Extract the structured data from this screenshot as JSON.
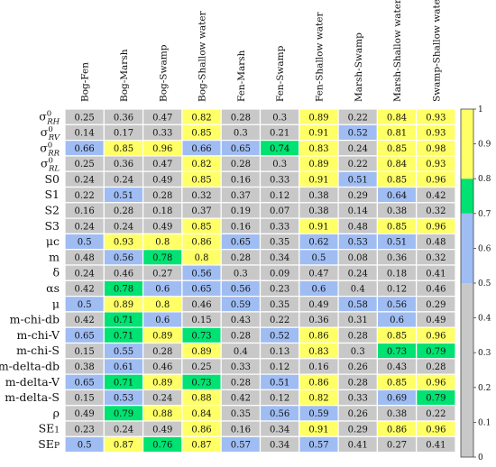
{
  "chart_data": {
    "type": "heatmap",
    "columns": [
      "Bog-Fen",
      "Bog-Marsh",
      "Bog-Swamp",
      "Bog-Shallow water",
      "Fen-Marsh",
      "Fen-Swamp",
      "Fen-Shallow water",
      "Marsh-Swamp",
      "Marsh-Shallow water",
      "Swamp-Shallow water"
    ],
    "rows": [
      {
        "label": "σ⁰RH",
        "base": "σ",
        "sup": "0",
        "sub": "RH",
        "values": [
          0.25,
          0.36,
          0.47,
          0.82,
          0.28,
          0.3,
          0.89,
          0.22,
          0.84,
          0.93
        ]
      },
      {
        "label": "σ⁰RV",
        "base": "σ",
        "sup": "0",
        "sub": "RV",
        "values": [
          0.14,
          0.17,
          0.33,
          0.85,
          0.3,
          0.21,
          0.91,
          0.52,
          0.81,
          0.93
        ]
      },
      {
        "label": "σ⁰RR",
        "base": "σ",
        "sup": "0",
        "sub": "RR",
        "values": [
          0.66,
          0.85,
          0.96,
          0.66,
          0.65,
          0.74,
          0.83,
          0.24,
          0.85,
          0.98
        ]
      },
      {
        "label": "σ⁰RL",
        "base": "σ",
        "sup": "0",
        "sub": "RL",
        "values": [
          0.25,
          0.36,
          0.47,
          0.82,
          0.28,
          0.3,
          0.89,
          0.22,
          0.84,
          0.93
        ]
      },
      {
        "label": "S0",
        "values": [
          0.24,
          0.24,
          0.49,
          0.85,
          0.16,
          0.33,
          0.91,
          0.51,
          0.85,
          0.96
        ]
      },
      {
        "label": "S1",
        "values": [
          0.22,
          0.51,
          0.28,
          0.32,
          0.37,
          0.12,
          0.38,
          0.29,
          0.64,
          0.42
        ]
      },
      {
        "label": "S2",
        "values": [
          0.16,
          0.28,
          0.18,
          0.37,
          0.19,
          0.07,
          0.38,
          0.14,
          0.38,
          0.32
        ]
      },
      {
        "label": "S3",
        "values": [
          0.24,
          0.24,
          0.49,
          0.85,
          0.16,
          0.33,
          0.91,
          0.48,
          0.85,
          0.96
        ]
      },
      {
        "label": "μc",
        "values": [
          0.5,
          0.93,
          0.8,
          0.86,
          0.65,
          0.35,
          0.62,
          0.53,
          0.51,
          0.48
        ]
      },
      {
        "label": "m",
        "values": [
          0.48,
          0.56,
          0.78,
          0.8,
          0.28,
          0.34,
          0.5,
          0.08,
          0.36,
          0.32
        ]
      },
      {
        "label": "δ",
        "values": [
          0.24,
          0.46,
          0.27,
          0.56,
          0.3,
          0.09,
          0.47,
          0.24,
          0.18,
          0.41
        ]
      },
      {
        "label": "αs",
        "values": [
          0.42,
          0.78,
          0.6,
          0.65,
          0.56,
          0.23,
          0.6,
          0.4,
          0.12,
          0.46
        ]
      },
      {
        "label": "μ",
        "values": [
          0.5,
          0.89,
          0.8,
          0.46,
          0.59,
          0.35,
          0.49,
          0.58,
          0.56,
          0.29
        ]
      },
      {
        "label": "m-chi-db",
        "values": [
          0.42,
          0.71,
          0.6,
          0.15,
          0.43,
          0.22,
          0.36,
          0.31,
          0.6,
          0.49
        ]
      },
      {
        "label": "m-chi-V",
        "values": [
          0.65,
          0.71,
          0.89,
          0.73,
          0.28,
          0.52,
          0.86,
          0.28,
          0.85,
          0.96
        ]
      },
      {
        "label": "m-chi-S",
        "values": [
          0.15,
          0.55,
          0.28,
          0.89,
          0.4,
          0.13,
          0.83,
          0.3,
          0.73,
          0.79
        ]
      },
      {
        "label": "m-delta-db",
        "values": [
          0.38,
          0.61,
          0.46,
          0.25,
          0.33,
          0.12,
          0.16,
          0.26,
          0.43,
          0.28
        ]
      },
      {
        "label": "m-delta-V",
        "values": [
          0.65,
          0.71,
          0.89,
          0.73,
          0.28,
          0.51,
          0.86,
          0.28,
          0.85,
          0.96
        ]
      },
      {
        "label": "m-delta-S",
        "values": [
          0.15,
          0.53,
          0.24,
          0.88,
          0.42,
          0.12,
          0.82,
          0.33,
          0.69,
          0.79
        ]
      },
      {
        "label": "ρ",
        "values": [
          0.49,
          0.79,
          0.88,
          0.84,
          0.35,
          0.56,
          0.59,
          0.26,
          0.38,
          0.22
        ]
      },
      {
        "label": "SE1",
        "base": "SE",
        "small": "1",
        "values": [
          0.23,
          0.24,
          0.49,
          0.86,
          0.16,
          0.34,
          0.91,
          0.29,
          0.86,
          0.96
        ]
      },
      {
        "label": "SEP",
        "base": "SE",
        "small": "P",
        "values": [
          0.5,
          0.87,
          0.76,
          0.87,
          0.57,
          0.34,
          0.57,
          0.41,
          0.27,
          0.41
        ]
      }
    ],
    "color_bins": [
      {
        "min": 0.0,
        "max": 0.5,
        "color": "#c8c8c8"
      },
      {
        "min": 0.5,
        "max": 0.7,
        "color": "#9fbdf3"
      },
      {
        "min": 0.7,
        "max": 0.8,
        "color": "#00e271"
      },
      {
        "min": 0.8,
        "max": 0.9,
        "color": "#ffff66"
      },
      {
        "min": 0.9,
        "max": 1.0,
        "color": "#ffff66"
      }
    ],
    "colorbar": {
      "range": [
        0,
        1
      ],
      "ticks": [
        "0",
        "0.1",
        "0.2",
        "0.3",
        "0.4",
        "0.5",
        "0.6",
        "0.7",
        "0.8",
        "0.9",
        "1"
      ]
    }
  }
}
